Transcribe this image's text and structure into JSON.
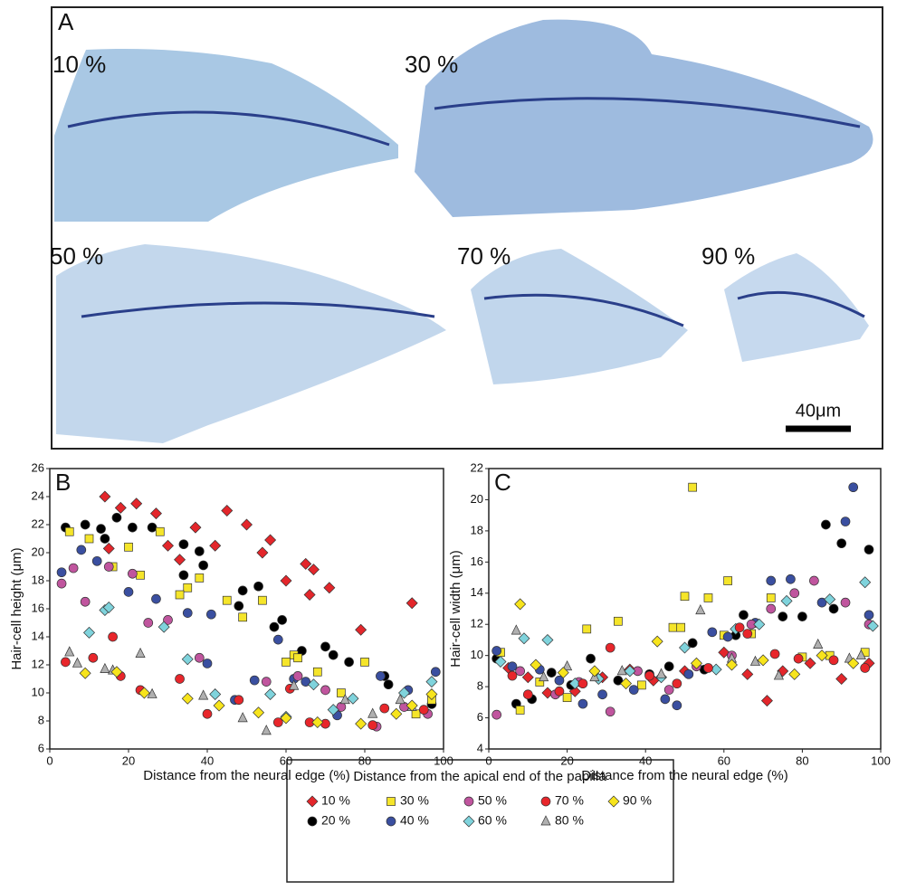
{
  "panel_a": {
    "label": "A",
    "images": [
      "10 %",
      "30 %",
      "50 %",
      "70 %",
      "90 %"
    ],
    "scale_bar": "40μm"
  },
  "legend_title": "Distance from the apical end of the papilla",
  "chart_data": [
    {
      "type": "scatter",
      "panel_label": "B",
      "xlabel": "Distance from the neural edge (%)",
      "ylabel": "Hair-cell height (μm)",
      "xlim": [
        0,
        100
      ],
      "xticks": [
        0,
        20,
        40,
        60,
        80,
        100
      ],
      "ylim": [
        6,
        26
      ],
      "yticks": [
        6,
        8,
        10,
        12,
        14,
        16,
        18,
        20,
        22,
        24,
        26
      ],
      "series": [
        {
          "name": "10 %",
          "color": "#e3262b",
          "marker": "diamond",
          "x": [
            14,
            22,
            18,
            27,
            37,
            45,
            50,
            56,
            42,
            54,
            60,
            65,
            67,
            71,
            66,
            79,
            92,
            15,
            33,
            30
          ],
          "values": [
            24,
            23.5,
            23.2,
            22.8,
            21.8,
            23,
            22,
            20.9,
            20.5,
            20,
            18,
            19.2,
            18.8,
            17.5,
            17,
            14.5,
            16.4,
            20.3,
            19.5,
            20.5
          ]
        },
        {
          "name": "20 %",
          "color": "#000000",
          "marker": "circle",
          "x": [
            4,
            9,
            13,
            17,
            21,
            26,
            34,
            38,
            39,
            48,
            49,
            53,
            57,
            59,
            70,
            72,
            76,
            85,
            86,
            97,
            34,
            64,
            14
          ],
          "values": [
            21.8,
            22,
            21.7,
            22.5,
            21.8,
            21.8,
            20.6,
            20.1,
            19.1,
            16.2,
            17.3,
            17.6,
            14.7,
            15.2,
            13.3,
            12.7,
            12.2,
            11.2,
            10.6,
            9.2,
            18.4,
            13,
            21
          ]
        },
        {
          "name": "30 %",
          "color": "#f5e52a",
          "marker": "square",
          "x": [
            5,
            10,
            20,
            28,
            35,
            38,
            49,
            54,
            62,
            60,
            80,
            74,
            68,
            16,
            23,
            33,
            45,
            63,
            93,
            97
          ],
          "values": [
            21.5,
            21,
            20.4,
            21.5,
            17.5,
            18.2,
            15.4,
            16.6,
            12.7,
            12.2,
            12.2,
            10,
            11.5,
            19,
            18.4,
            17,
            16.6,
            12.5,
            8.5,
            9.5
          ]
        },
        {
          "name": "40 %",
          "color": "#3a4fa0",
          "marker": "circle",
          "x": [
            3,
            8,
            12,
            20,
            27,
            35,
            41,
            40,
            52,
            58,
            62,
            65,
            73,
            84,
            91,
            98,
            47
          ],
          "values": [
            18.6,
            20.2,
            19.4,
            17.2,
            16.7,
            15.7,
            15.6,
            12.1,
            10.9,
            13.8,
            11,
            10.8,
            8.4,
            11.2,
            10.2,
            11.5,
            9.5
          ]
        },
        {
          "name": "50 %",
          "color": "#c0559e",
          "marker": "circle",
          "x": [
            3,
            9,
            15,
            21,
            25,
            30,
            38,
            55,
            63,
            70,
            74,
            83,
            90,
            96,
            6
          ],
          "values": [
            17.8,
            16.5,
            19,
            18.5,
            15,
            15.2,
            12.5,
            10.8,
            11.2,
            10.2,
            9,
            7.6,
            9,
            8.5,
            18.9
          ]
        },
        {
          "name": "60 %",
          "color": "#7fd3dc",
          "marker": "diamond",
          "x": [
            10,
            14,
            15,
            29,
            35,
            42,
            56,
            67,
            72,
            77,
            90,
            97,
            60
          ],
          "values": [
            14.3,
            15.9,
            16.1,
            14.7,
            12.4,
            9.9,
            9.9,
            10.6,
            8.8,
            9.6,
            10,
            10.8,
            8.3
          ]
        },
        {
          "name": "70 %",
          "color": "#e8262b",
          "marker": "circle",
          "x": [
            4,
            11,
            16,
            23,
            33,
            40,
            48,
            58,
            66,
            70,
            82,
            85,
            95,
            61,
            18
          ],
          "values": [
            12.2,
            12.5,
            14,
            10.2,
            11,
            8.5,
            9.5,
            7.9,
            7.9,
            7.8,
            7.7,
            8.9,
            8.8,
            10.3,
            11.2
          ]
        },
        {
          "name": "80 %",
          "color": "#b0b0b0",
          "marker": "triangle",
          "x": [
            5,
            7,
            14,
            16,
            23,
            26,
            39,
            49,
            55,
            62,
            75,
            82,
            89,
            92
          ],
          "values": [
            12.9,
            12.1,
            11.7,
            11.6,
            12.8,
            9.9,
            9.8,
            8.2,
            7.3,
            10.5,
            9.5,
            8.5,
            9.5,
            9
          ]
        },
        {
          "name": "90 %",
          "color": "#f7e41c",
          "marker": "diamond",
          "x": [
            9,
            17,
            24,
            35,
            43,
            53,
            60,
            68,
            79,
            88,
            92,
            97
          ],
          "values": [
            11.4,
            11.5,
            10,
            9.6,
            9.1,
            8.6,
            8.2,
            7.9,
            7.8,
            8.5,
            9.1,
            9.9
          ]
        }
      ]
    },
    {
      "type": "scatter",
      "panel_label": "C",
      "xlabel": "Distance from the neural edge (%)",
      "ylabel": "Hair-cell width (μm)",
      "xlim": [
        0,
        100
      ],
      "xticks": [
        0,
        20,
        40,
        60,
        80,
        100
      ],
      "ylim": [
        4,
        22
      ],
      "yticks": [
        4,
        6,
        8,
        10,
        12,
        14,
        16,
        18,
        20,
        22
      ],
      "series": [
        {
          "name": "10 %",
          "color": "#e3262b",
          "marker": "diamond",
          "x": [
            5,
            10,
            15,
            22,
            29,
            36,
            42,
            50,
            60,
            66,
            71,
            75,
            82,
            90,
            97
          ],
          "values": [
            9.2,
            8.6,
            7.6,
            7.7,
            8.6,
            9.1,
            8.4,
            9,
            10.2,
            8.8,
            7.1,
            9,
            9.5,
            8.5,
            9.5
          ]
        },
        {
          "name": "20 %",
          "color": "#000000",
          "marker": "circle",
          "x": [
            2,
            7,
            11,
            16,
            21,
            26,
            33,
            41,
            46,
            52,
            55,
            63,
            65,
            75,
            80,
            86,
            90,
            97,
            88
          ],
          "values": [
            9.8,
            6.9,
            7.2,
            8.9,
            8.1,
            9.8,
            8.4,
            8.8,
            9.3,
            10.8,
            9.1,
            11.3,
            12.6,
            12.5,
            12.5,
            18.4,
            17.2,
            16.8,
            13
          ]
        },
        {
          "name": "30 %",
          "color": "#f5e52a",
          "marker": "square",
          "x": [
            3,
            8,
            13,
            20,
            25,
            33,
            39,
            47,
            50,
            52,
            56,
            61,
            67,
            72,
            80,
            87,
            96,
            49,
            60
          ],
          "values": [
            10.2,
            6.5,
            8.3,
            7.3,
            11.7,
            12.2,
            8.1,
            11.8,
            13.8,
            20.8,
            13.7,
            14.8,
            11.4,
            13.7,
            9.9,
            10,
            10.2,
            11.8,
            11.3
          ]
        },
        {
          "name": "40 %",
          "color": "#3a4fa0",
          "marker": "circle",
          "x": [
            2,
            6,
            13,
            18,
            24,
            29,
            37,
            45,
            48,
            51,
            57,
            61,
            68,
            72,
            77,
            85,
            91,
            93,
            97
          ],
          "values": [
            10.3,
            9.3,
            9.1,
            8.4,
            6.9,
            7.5,
            7.8,
            7.2,
            6.8,
            8.8,
            11.5,
            11.2,
            12.1,
            14.8,
            14.9,
            13.4,
            18.6,
            20.8,
            12.6
          ]
        },
        {
          "name": "50 %",
          "color": "#c0559e",
          "marker": "circle",
          "x": [
            2,
            8,
            17,
            23,
            31,
            38,
            46,
            53,
            62,
            67,
            72,
            78,
            83,
            91,
            97
          ],
          "values": [
            6.2,
            9,
            7.5,
            8.3,
            6.4,
            9,
            7.8,
            9.3,
            10,
            12,
            13,
            14,
            14.8,
            13.4,
            12
          ]
        },
        {
          "name": "60 %",
          "color": "#7fd3dc",
          "marker": "diamond",
          "x": [
            3,
            9,
            15,
            22,
            28,
            36,
            44,
            50,
            58,
            63,
            69,
            76,
            87,
            96,
            98
          ],
          "values": [
            9.6,
            11.1,
            11,
            8.2,
            8.5,
            9,
            8.6,
            10.5,
            9.1,
            11.7,
            12,
            13.5,
            13.6,
            14.7,
            11.9
          ]
        },
        {
          "name": "70 %",
          "color": "#e8262b",
          "marker": "circle",
          "x": [
            6,
            10,
            18,
            24,
            31,
            41,
            48,
            56,
            64,
            66,
            73,
            79,
            88,
            96
          ],
          "values": [
            8.7,
            7.5,
            7.7,
            8.2,
            10.5,
            8.7,
            8.2,
            9.2,
            11.8,
            11.4,
            10.1,
            9.8,
            9.7,
            9.2
          ]
        },
        {
          "name": "80 %",
          "color": "#b0b0b0",
          "marker": "triangle",
          "x": [
            7,
            14,
            20,
            27,
            34,
            44,
            54,
            62,
            68,
            74,
            84,
            92,
            95
          ],
          "values": [
            11.6,
            8.6,
            9.3,
            8.6,
            9,
            8.8,
            12.9,
            9.8,
            9.6,
            8.7,
            10.7,
            9.8,
            10
          ]
        },
        {
          "name": "90 %",
          "color": "#f7e41c",
          "marker": "diamond",
          "x": [
            8,
            12,
            19,
            27,
            35,
            43,
            53,
            62,
            70,
            78,
            85,
            93
          ],
          "values": [
            13.3,
            9.4,
            8.9,
            9,
            8.2,
            10.9,
            9.5,
            9.4,
            9.7,
            8.8,
            10,
            9.5
          ]
        }
      ]
    }
  ]
}
